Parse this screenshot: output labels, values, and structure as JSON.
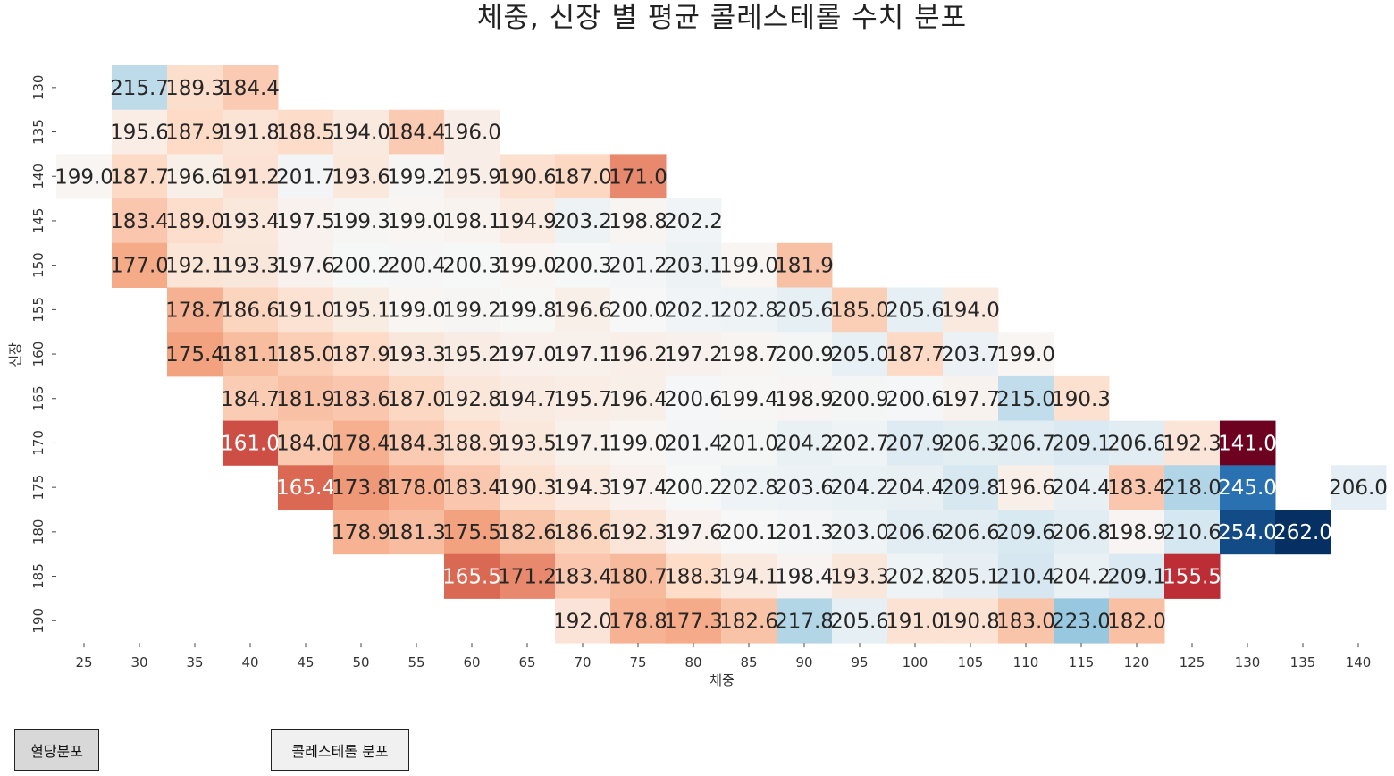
{
  "chart_data": {
    "type": "heatmap",
    "title": "체중, 신장 별 평균 콜레스테롤 수치 분포",
    "xlabel": "체중",
    "ylabel": "신장",
    "x_categories": [
      "25",
      "30",
      "35",
      "40",
      "45",
      "50",
      "55",
      "60",
      "65",
      "70",
      "75",
      "80",
      "85",
      "90",
      "95",
      "100",
      "105",
      "110",
      "115",
      "120",
      "125",
      "130",
      "135",
      "140"
    ],
    "y_categories": [
      "130",
      "135",
      "140",
      "145",
      "150",
      "155",
      "160",
      "165",
      "170",
      "175",
      "180",
      "185",
      "190"
    ],
    "values": [
      [
        null,
        215.7,
        189.3,
        184.4,
        null,
        null,
        null,
        null,
        null,
        null,
        null,
        null,
        null,
        null,
        null,
        null,
        null,
        null,
        null,
        null,
        null,
        null,
        null,
        null
      ],
      [
        null,
        195.6,
        187.9,
        191.8,
        188.5,
        194.0,
        184.4,
        196.0,
        null,
        null,
        null,
        null,
        null,
        null,
        null,
        null,
        null,
        null,
        null,
        null,
        null,
        null,
        null,
        null
      ],
      [
        199.0,
        187.7,
        196.6,
        191.2,
        201.7,
        193.6,
        199.2,
        195.9,
        190.6,
        187.0,
        171.0,
        null,
        null,
        null,
        null,
        null,
        null,
        null,
        null,
        null,
        null,
        null,
        null,
        null
      ],
      [
        null,
        183.4,
        189.0,
        193.4,
        197.5,
        199.3,
        199.0,
        198.1,
        194.9,
        203.2,
        198.8,
        202.2,
        null,
        null,
        null,
        null,
        null,
        null,
        null,
        null,
        null,
        null,
        null,
        null
      ],
      [
        null,
        177.0,
        192.1,
        193.3,
        197.6,
        200.2,
        200.4,
        200.3,
        199.0,
        200.3,
        201.2,
        203.1,
        199.0,
        181.9,
        null,
        null,
        null,
        null,
        null,
        null,
        null,
        null,
        null,
        null
      ],
      [
        null,
        null,
        178.7,
        186.6,
        191.0,
        195.1,
        199.0,
        199.2,
        199.8,
        196.6,
        200.0,
        202.1,
        202.8,
        205.6,
        185.0,
        205.6,
        194.0,
        null,
        null,
        null,
        null,
        null,
        null,
        null
      ],
      [
        null,
        null,
        175.4,
        181.1,
        185.0,
        187.9,
        193.3,
        195.2,
        197.0,
        197.1,
        196.2,
        197.2,
        198.7,
        200.9,
        205.0,
        187.7,
        203.7,
        199.0,
        null,
        null,
        null,
        null,
        null,
        null
      ],
      [
        null,
        null,
        null,
        184.7,
        181.9,
        183.6,
        187.0,
        192.8,
        194.7,
        195.7,
        196.4,
        200.6,
        199.4,
        198.9,
        200.9,
        200.6,
        197.7,
        215.0,
        190.3,
        null,
        null,
        null,
        null,
        null
      ],
      [
        null,
        null,
        null,
        161.0,
        184.0,
        178.4,
        184.3,
        188.9,
        193.5,
        197.1,
        199.0,
        201.4,
        201.0,
        204.2,
        202.7,
        207.9,
        206.3,
        206.7,
        209.1,
        206.6,
        192.3,
        141.0,
        null,
        null
      ],
      [
        null,
        null,
        null,
        null,
        165.4,
        173.8,
        178.0,
        183.4,
        190.3,
        194.3,
        197.4,
        200.2,
        202.8,
        203.6,
        204.2,
        204.4,
        209.8,
        196.6,
        204.4,
        183.4,
        218.0,
        245.0,
        null,
        206.0
      ],
      [
        null,
        null,
        null,
        null,
        null,
        178.9,
        181.3,
        175.5,
        182.6,
        186.6,
        192.3,
        197.6,
        200.1,
        201.3,
        203.0,
        206.6,
        206.6,
        209.6,
        206.8,
        198.9,
        210.6,
        254.0,
        262.0,
        null
      ],
      [
        null,
        null,
        null,
        null,
        null,
        null,
        null,
        165.5,
        171.2,
        183.4,
        180.7,
        188.3,
        194.1,
        198.4,
        193.3,
        202.8,
        205.1,
        210.4,
        204.2,
        209.1,
        155.5,
        null,
        null,
        null
      ],
      [
        null,
        null,
        null,
        null,
        null,
        null,
        null,
        null,
        null,
        192.0,
        178.8,
        177.3,
        182.6,
        217.8,
        205.6,
        191.0,
        190.8,
        183.0,
        223.0,
        182.0,
        null,
        null,
        null,
        null
      ]
    ],
    "colormap": "RdBu",
    "color_center": 200,
    "color_range": [
      140,
      260
    ],
    "grid": false,
    "legend": "none"
  },
  "buttons": {
    "blood_pressure": "혈당분포",
    "cholesterol": "콜레스테롤 분포"
  }
}
